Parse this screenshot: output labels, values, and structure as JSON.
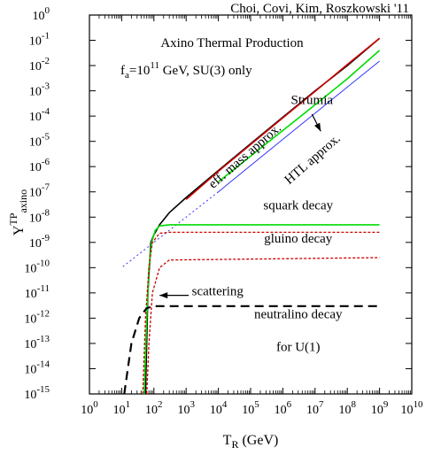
{
  "chart_data": {
    "type": "line",
    "credit": "Choi, Covi, Kim, Roszkowski '11",
    "title": "Axino Thermal Production",
    "subtitle": {
      "base": "f",
      "sub": "a",
      "mid": "=10",
      "sup": "11",
      "rest": " GeV, SU(3) only"
    },
    "xlabel": {
      "base": "T",
      "sub": "R",
      "rest": " (GeV)"
    },
    "ylabel": {
      "base": "Y",
      "sup": "TP",
      "sub": "axino"
    },
    "xscale": "log",
    "yscale": "log",
    "xlim": [
      1,
      10000000000.0
    ],
    "ylim": [
      1e-15,
      1
    ],
    "x_ticks": [
      {
        "v": 1,
        "e": "0"
      },
      {
        "v": 10,
        "e": "1"
      },
      {
        "v": 100,
        "e": "2"
      },
      {
        "v": 1000,
        "e": "3"
      },
      {
        "v": 10000,
        "e": "4"
      },
      {
        "v": 100000,
        "e": "5"
      },
      {
        "v": 1000000,
        "e": "6"
      },
      {
        "v": 10000000,
        "e": "7"
      },
      {
        "v": 100000000,
        "e": "8"
      },
      {
        "v": 1000000000,
        "e": "9"
      },
      {
        "v": 10000000000,
        "e": "10"
      }
    ],
    "y_ticks": [
      {
        "v": 1,
        "e": "0"
      },
      {
        "v": 0.1,
        "e": "-1"
      },
      {
        "v": 0.01,
        "e": "-2"
      },
      {
        "v": 0.001,
        "e": "-3"
      },
      {
        "v": 0.0001,
        "e": "-4"
      },
      {
        "v": 1e-05,
        "e": "-5"
      },
      {
        "v": 1e-06,
        "e": "-6"
      },
      {
        "v": 1e-07,
        "e": "-7"
      },
      {
        "v": 1e-08,
        "e": "-8"
      },
      {
        "v": 1e-09,
        "e": "-9"
      },
      {
        "v": 1e-10,
        "e": "-10"
      },
      {
        "v": 1e-11,
        "e": "-11"
      },
      {
        "v": 1e-12,
        "e": "-12"
      },
      {
        "v": 1e-13,
        "e": "-13"
      },
      {
        "v": 1e-14,
        "e": "-14"
      },
      {
        "v": 1e-15,
        "e": "-15"
      }
    ],
    "tick_base": "10",
    "grid": false,
    "series": [
      {
        "color": "#000000",
        "width": 1.6,
        "dash": "",
        "points": [
          [
            55,
            1e-15
          ],
          [
            65,
            1e-11
          ],
          [
            80,
            1e-09
          ],
          [
            100,
            2e-09
          ],
          [
            150,
            5e-09
          ],
          [
            300,
            1.5e-08
          ],
          [
            1000,
            6e-08
          ],
          [
            10000,
            7e-07
          ],
          [
            100000,
            8e-06
          ],
          [
            1000000,
            9e-05
          ],
          [
            10000000,
            0.001
          ],
          [
            100000000,
            0.01
          ],
          [
            1000000000,
            0.12
          ]
        ]
      },
      {
        "color": "#cc0000",
        "width": 1.6,
        "dash": "",
        "points": [
          [
            1000,
            5e-08
          ],
          [
            10000,
            6.5e-07
          ],
          [
            100000,
            7.5e-06
          ],
          [
            1000000,
            8.5e-05
          ],
          [
            10000000,
            0.00095
          ],
          [
            100000000,
            0.011
          ],
          [
            1000000000,
            0.12
          ]
        ]
      },
      {
        "color": "#00dd00",
        "width": 1.6,
        "dash": "",
        "points": [
          [
            10000,
            2.5e-07
          ],
          [
            100000,
            2.6e-06
          ],
          [
            1000000,
            2.7e-05
          ],
          [
            10000000,
            0.00028
          ],
          [
            100000000,
            0.003
          ],
          [
            1000000000,
            0.04
          ]
        ]
      },
      {
        "color": "#3333ff",
        "width": 1.0,
        "dash": "",
        "points": [
          [
            10000,
            1e-07
          ],
          [
            100000,
            1.1e-06
          ],
          [
            1000000,
            1.2e-05
          ],
          [
            10000000,
            0.00013
          ],
          [
            100000000,
            0.0014
          ],
          [
            1000000000,
            0.015
          ]
        ]
      },
      {
        "color": "#3333ff",
        "width": 1.0,
        "dash": "2,3",
        "points": [
          [
            10000,
            1e-07
          ],
          [
            10,
            1e-10
          ]
        ]
      },
      {
        "color": "#00dd00",
        "width": 1.6,
        "dash": "",
        "points": [
          [
            50,
            1e-15
          ],
          [
            60,
            1e-12
          ],
          [
            70,
            1e-10
          ],
          [
            85,
            1e-09
          ],
          [
            110,
            3e-09
          ],
          [
            150,
            4.5e-09
          ],
          [
            300,
            5e-09
          ],
          [
            1000000000,
            5e-09
          ]
        ]
      },
      {
        "color": "#cc0000",
        "width": 1.3,
        "dash": "3,2",
        "points": [
          [
            45,
            1e-15
          ],
          [
            55,
            1e-12
          ],
          [
            70,
            1e-10
          ],
          [
            90,
            1e-09
          ],
          [
            150,
            2.3e-09
          ],
          [
            300,
            2.5e-09
          ],
          [
            1000000000,
            2.5e-09
          ]
        ]
      },
      {
        "color": "#cc0000",
        "width": 1.3,
        "dash": "3,2",
        "points": [
          [
            60,
            1e-15
          ],
          [
            70,
            1e-13
          ],
          [
            90,
            1e-11
          ],
          [
            150,
            1e-10
          ],
          [
            300,
            2e-10
          ],
          [
            1000000000,
            2.5e-10
          ]
        ]
      },
      {
        "color": "#000000",
        "width": 2.2,
        "dash": "10,6",
        "points": [
          [
            12,
            1e-15
          ],
          [
            20,
            1e-13
          ],
          [
            35,
            1e-12
          ],
          [
            60,
            2.5e-12
          ],
          [
            100,
            3e-12
          ],
          [
            1000000000,
            3e-12
          ]
        ]
      }
    ],
    "annotations": [
      {
        "text": "Strumia",
        "x": 8000000,
        "y": 0.0003,
        "rotate": 0,
        "anchor": "middle"
      },
      {
        "text": "eff. mass approx.",
        "x": 80000,
        "y": 2e-06,
        "rotate": -41,
        "anchor": "middle"
      },
      {
        "text": "HTL approx.",
        "x": 10000000,
        "y": 1.5e-06,
        "rotate": -41,
        "anchor": "middle"
      },
      {
        "text": "squark decay",
        "x": 3000000,
        "y": 2e-08,
        "rotate": 0,
        "anchor": "middle"
      },
      {
        "text": "gluino decay",
        "x": 3000000,
        "y": 1e-09,
        "rotate": 0,
        "anchor": "middle"
      },
      {
        "text": "scattering",
        "x": 1500,
        "y": 8e-12,
        "rotate": 0,
        "anchor": "start"
      },
      {
        "text": "neutralino decay",
        "x": 3000000,
        "y": 1e-12,
        "rotate": 0,
        "anchor": "middle"
      },
      {
        "text": "for U(1)",
        "x": 3000000,
        "y": 5e-14,
        "rotate": 0,
        "anchor": "middle"
      }
    ],
    "arrows": [
      {
        "name": "strumia-arrow",
        "from": [
          8000000,
          0.00012
        ],
        "to": [
          15000000,
          2.5e-05
        ]
      },
      {
        "name": "scattering-arrow",
        "from": [
          1200,
          8e-12
        ],
        "to": [
          150,
          8e-12
        ]
      }
    ]
  }
}
